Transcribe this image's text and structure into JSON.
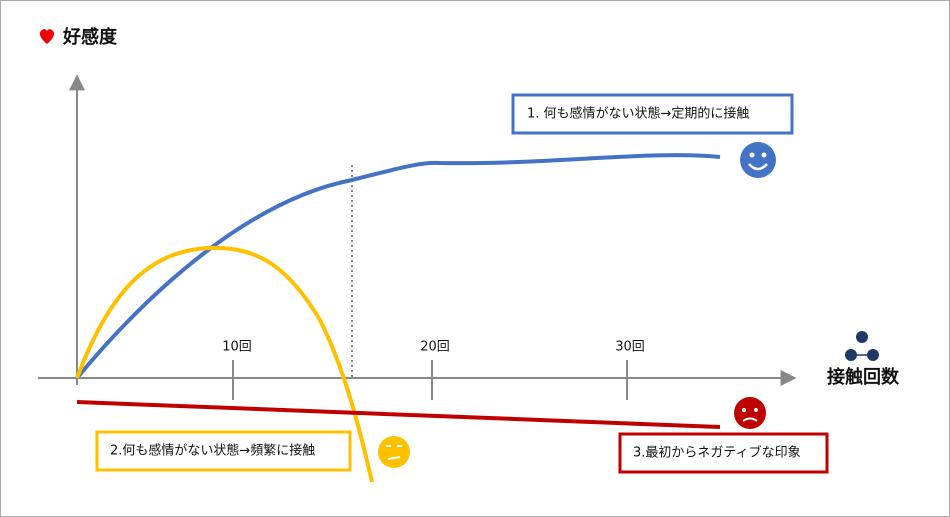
{
  "y_axis_label": "好感度",
  "x_axis_label": "接触回数",
  "ticks": [
    "10回",
    "20回",
    "30回"
  ],
  "annotations": [
    "1. 何も感情がない状態→定期的に接触",
    "2.何も感情がない状態→頻繁に接触",
    "3.最初からネガティブな印象"
  ]
}
